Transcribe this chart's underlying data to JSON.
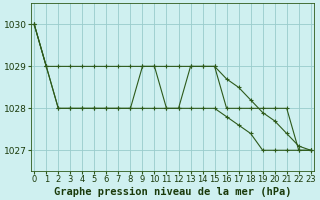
{
  "title": "Graphe pression niveau de la mer (hPa)",
  "background_color": "#cff0f0",
  "grid_color": "#99cccc",
  "line_color": "#2d5a1b",
  "marker": "+",
  "ylim": [
    1026.5,
    1030.5
  ],
  "yticks": [
    1027,
    1028,
    1029,
    1030
  ],
  "xlim": [
    -0.3,
    23.3
  ],
  "xticks": [
    0,
    1,
    2,
    3,
    4,
    5,
    6,
    7,
    8,
    9,
    10,
    11,
    12,
    13,
    14,
    15,
    16,
    17,
    18,
    19,
    20,
    21,
    22,
    23
  ],
  "series": [
    [
      1030,
      1029,
      1029,
      1029,
      1029,
      1029,
      1029,
      1029,
      1029,
      1029,
      1029,
      1029,
      1029,
      1029,
      1029,
      1029,
      1028.7,
      1028.5,
      1028.2,
      1027.9,
      1027.7,
      1027.4,
      1027.1,
      1027
    ],
    [
      1030,
      1029,
      1028,
      1028,
      1028,
      1028,
      1028,
      1028,
      1028,
      1029,
      1029,
      1028,
      1028,
      1029,
      1029,
      1029,
      1028,
      1028,
      1028,
      1028,
      1028,
      1028,
      1027,
      1027
    ],
    [
      1030,
      1029,
      1028,
      1028,
      1028,
      1028,
      1028,
      1028,
      1028,
      1028,
      1028,
      1028,
      1028,
      1028,
      1028,
      1028,
      1027.8,
      1027.6,
      1027.4,
      1027,
      1027,
      1027,
      1027,
      1027
    ]
  ],
  "tick_fontsize": 6.5,
  "title_fontsize": 7.5,
  "figsize": [
    3.2,
    2.0
  ],
  "dpi": 100
}
